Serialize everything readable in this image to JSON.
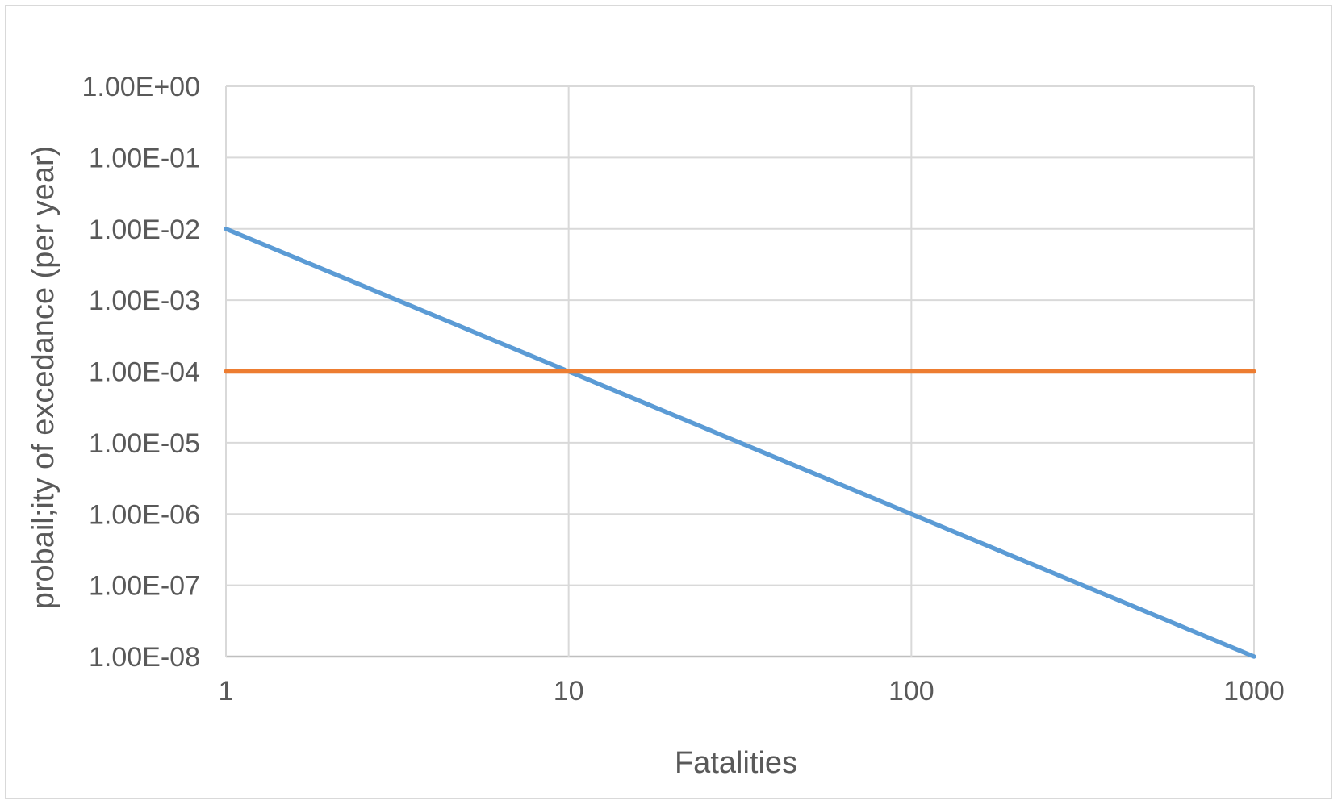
{
  "chart_data": {
    "type": "line",
    "title": "",
    "xlabel": "Fatalities",
    "ylabel": "probail;ity of excedance (per year)",
    "x_scale": "log",
    "y_scale": "log",
    "xlim": [
      1,
      1000
    ],
    "ylim": [
      1e-08,
      1
    ],
    "x_ticks": [
      "1",
      "10",
      "100",
      "1000"
    ],
    "y_ticks": [
      "1.00E+00",
      "1.00E-01",
      "1.00E-02",
      "1.00E-03",
      "1.00E-04",
      "1.00E-05",
      "1.00E-06",
      "1.00E-07",
      "1.00E-08"
    ],
    "grid": true,
    "legend": "none",
    "series": [
      {
        "color": "#5b9bd5",
        "x": [
          1,
          10,
          100,
          1000
        ],
        "y": [
          0.01,
          0.0001,
          1e-06,
          1e-08
        ]
      },
      {
        "color": "#ed7d31",
        "x": [
          1,
          1000
        ],
        "y": [
          0.0001,
          0.0001
        ]
      }
    ]
  }
}
